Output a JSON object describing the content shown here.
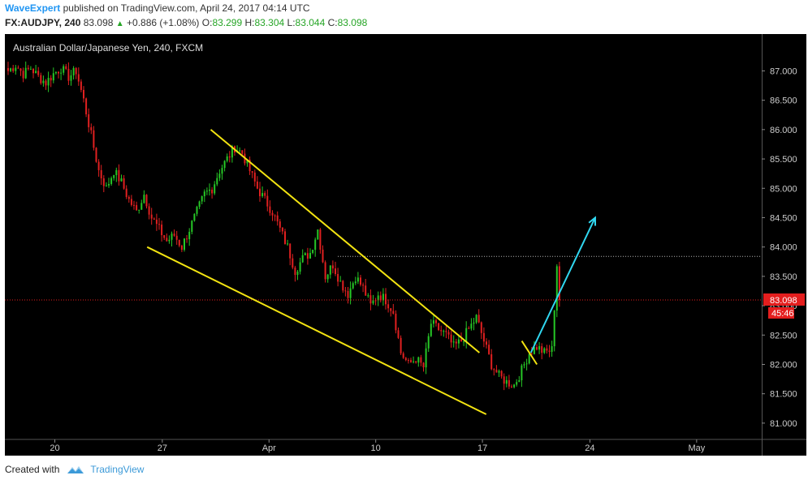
{
  "header": {
    "author": "WaveExpert",
    "published_text": "published on TradingView.com, April 24, 2017 04:14 UTC",
    "symbol": "FX:AUDJPY, 240",
    "last": "83.098",
    "change": "+0.886 (+1.08%)",
    "o_label": "O:",
    "o_value": "83.299",
    "h_label": "H:",
    "h_value": "83.304",
    "l_label": "L:",
    "l_value": "83.044",
    "c_label": "C:",
    "c_value": "83.098"
  },
  "chart_data": {
    "type": "candlestick",
    "title": "Australian Dollar/Japanese Yen, 240, FXCM",
    "x_ticks": [
      "20",
      "27",
      "Apr",
      "10",
      "17",
      "24",
      "May"
    ],
    "y_ticks": [
      "81.000",
      "81.500",
      "82.000",
      "82.500",
      "83.000",
      "83.500",
      "84.000",
      "84.500",
      "85.000",
      "85.500",
      "86.000",
      "86.500",
      "87.000"
    ],
    "ylim": [
      80.75,
      87.6
    ],
    "last_price": "83.098",
    "countdown": "45:46",
    "resistance_level": 83.84,
    "close_path": [
      [
        0,
        87.0
      ],
      [
        3,
        87.1
      ],
      [
        6,
        86.95
      ],
      [
        9,
        87.05
      ],
      [
        12,
        86.9
      ],
      [
        15,
        86.8
      ],
      [
        18,
        86.95
      ],
      [
        21,
        87.05
      ],
      [
        24,
        86.9
      ],
      [
        27,
        87.0
      ],
      [
        30,
        86.5
      ],
      [
        33,
        85.9
      ],
      [
        36,
        85.3
      ],
      [
        39,
        85.0
      ],
      [
        42,
        85.3
      ],
      [
        45,
        85.1
      ],
      [
        48,
        84.8
      ],
      [
        51,
        84.6
      ],
      [
        54,
        84.9
      ],
      [
        57,
        84.5
      ],
      [
        60,
        84.3
      ],
      [
        63,
        84.1
      ],
      [
        66,
        84.2
      ],
      [
        69,
        84.0
      ],
      [
        72,
        84.3
      ],
      [
        75,
        84.6
      ],
      [
        78,
        84.9
      ],
      [
        81,
        85.0
      ],
      [
        84,
        85.3
      ],
      [
        87,
        85.5
      ],
      [
        90,
        85.7
      ],
      [
        93,
        85.6
      ],
      [
        96,
        85.3
      ],
      [
        99,
        85.0
      ],
      [
        102,
        84.8
      ],
      [
        105,
        84.6
      ],
      [
        108,
        84.3
      ],
      [
        111,
        84.0
      ],
      [
        114,
        83.6
      ],
      [
        117,
        83.8
      ],
      [
        120,
        83.9
      ],
      [
        123,
        84.3
      ],
      [
        126,
        83.5
      ],
      [
        129,
        83.7
      ],
      [
        132,
        83.4
      ],
      [
        135,
        83.2
      ],
      [
        138,
        83.5
      ],
      [
        141,
        83.3
      ],
      [
        144,
        83.0
      ],
      [
        147,
        83.2
      ],
      [
        150,
        83.1
      ],
      [
        153,
        82.9
      ],
      [
        156,
        82.2
      ],
      [
        159,
        82.0
      ],
      [
        162,
        82.1
      ],
      [
        165,
        81.95
      ],
      [
        168,
        82.7
      ],
      [
        171,
        82.6
      ],
      [
        174,
        82.5
      ],
      [
        177,
        82.3
      ],
      [
        180,
        82.4
      ],
      [
        183,
        82.6
      ],
      [
        186,
        82.8
      ],
      [
        189,
        82.4
      ],
      [
        192,
        82.0
      ],
      [
        195,
        81.8
      ],
      [
        198,
        81.7
      ],
      [
        201,
        81.65
      ],
      [
        204,
        81.9
      ],
      [
        207,
        82.2
      ],
      [
        210,
        82.3
      ],
      [
        213,
        82.2
      ],
      [
        216,
        82.25
      ],
      [
        218,
        83.7
      ],
      [
        219,
        83.1
      ]
    ],
    "annotations": {
      "channel_upper": [
        [
          86.0,
          0.272
        ],
        [
          82.2,
          0.627
        ]
      ],
      "channel_lower": [
        [
          84.0,
          0.188
        ],
        [
          81.15,
          0.636
        ]
      ],
      "breakout_flag": [
        [
          82.4,
          0.683
        ],
        [
          82.0,
          0.703
        ]
      ],
      "projection_arrow": [
        [
          82.2,
          0.695
        ],
        [
          84.5,
          0.78
        ]
      ]
    },
    "colors": {
      "up": "#26c726",
      "down": "#e02020",
      "background": "#000000",
      "trendline": "#f2e311",
      "arrow": "#30d7f0",
      "last_price": "#e41e1e"
    }
  },
  "footer": {
    "created_with": "Created with",
    "brand": "TradingView"
  }
}
